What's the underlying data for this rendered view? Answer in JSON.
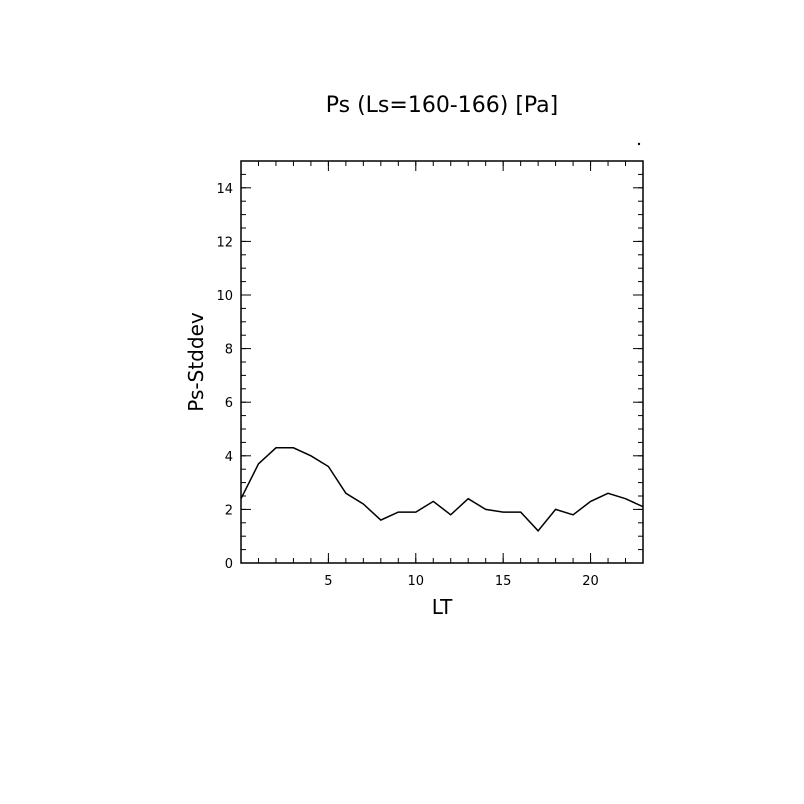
{
  "chart_data": {
    "type": "line",
    "title": "Ps (Ls=160-166) [Pa]",
    "xlabel": "LT",
    "ylabel": "Ps-Stddev",
    "xlim": [
      0,
      23
    ],
    "ylim": [
      0,
      15
    ],
    "x_ticks": [
      5,
      10,
      15,
      20
    ],
    "x_tick_labels": [
      "5",
      "10",
      "15",
      "20"
    ],
    "y_ticks": [
      0,
      2,
      4,
      6,
      8,
      10,
      12,
      14
    ],
    "y_tick_labels": [
      "0",
      "2",
      "4",
      "6",
      "8",
      "10",
      "12",
      "14"
    ],
    "grid": false,
    "series": [
      {
        "x": [
          0,
          1,
          2,
          3,
          4,
          5,
          6,
          7,
          8,
          9,
          10,
          11,
          12,
          13,
          14,
          15,
          16,
          17,
          18,
          19,
          20,
          21,
          22,
          23
        ],
        "values": [
          2.4,
          3.7,
          4.3,
          4.3,
          4.0,
          3.6,
          2.6,
          2.2,
          1.6,
          1.9,
          1.9,
          2.3,
          1.8,
          2.4,
          2.0,
          1.9,
          1.9,
          1.2,
          2.0,
          1.8,
          2.3,
          2.6,
          2.4,
          2.1
        ],
        "color": "#000000"
      }
    ]
  }
}
